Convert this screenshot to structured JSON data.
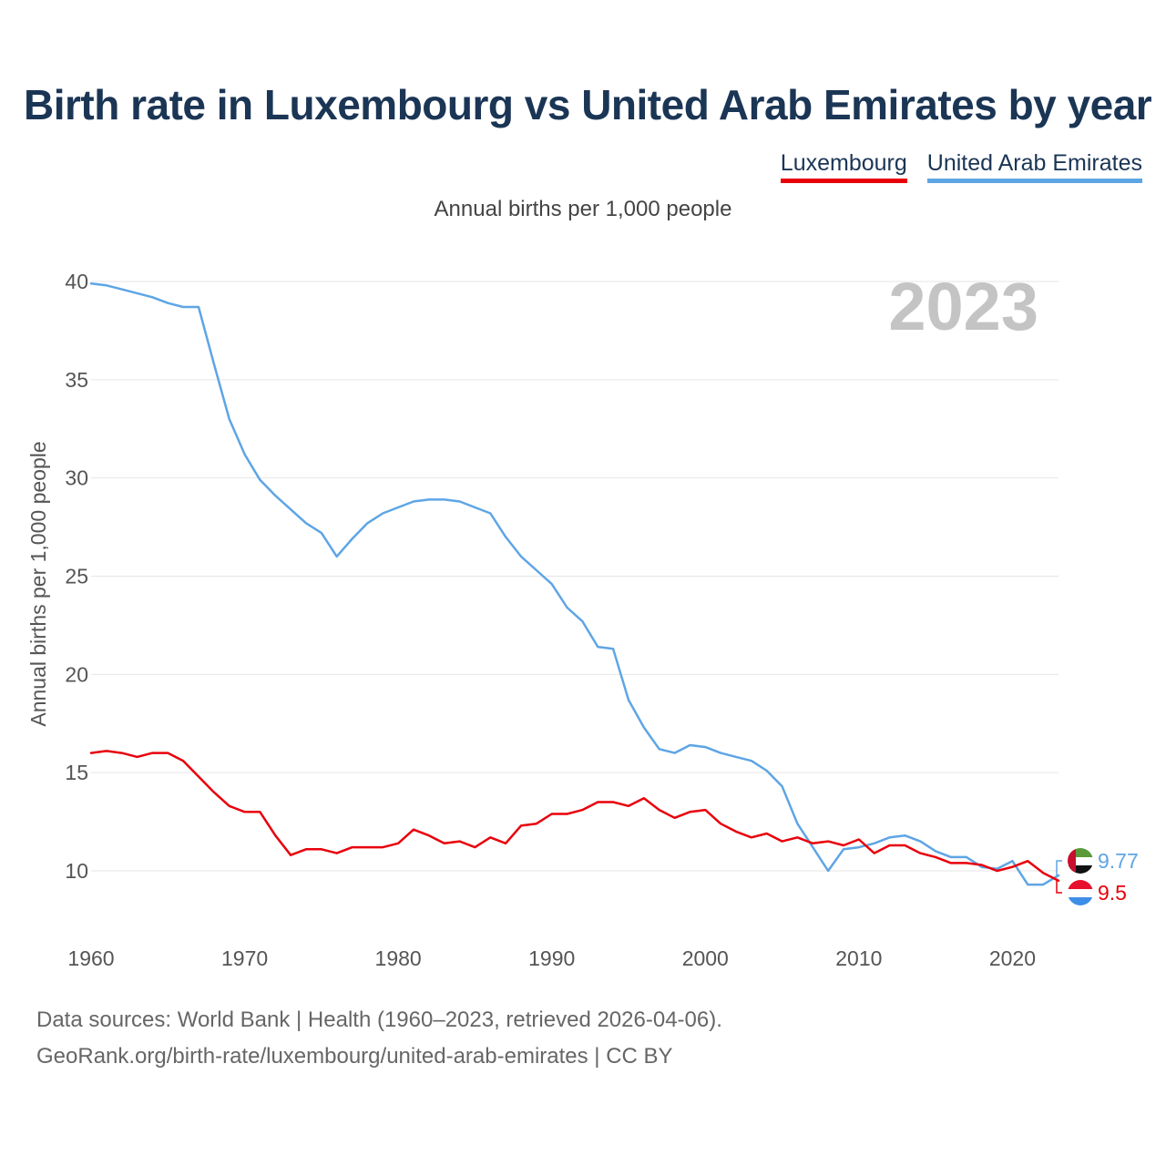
{
  "header": {
    "title": "Birth rate in Luxembourg vs United Arab Emirates by year",
    "subtitle": "Annual births per 1,000 people"
  },
  "legend": {
    "items": [
      "Luxembourg",
      "United Arab Emirates"
    ]
  },
  "footer": {
    "line1": "Data sources: World Bank | Health (1960–2023, retrieved 2026-04-06).",
    "line2": "GeoRank.org/birth-rate/luxembourg/united-arab-emirates | CC BY"
  },
  "colors": {
    "luxembourg": "#e8000b",
    "uae": "#5ea5e5",
    "title": "#1b3555",
    "year_watermark": "#c4c4c4",
    "grid": "#e6e6e6"
  },
  "chart_data": {
    "type": "line",
    "title": "Birth rate in Luxembourg vs United Arab Emirates by year",
    "ylabel": "Annual births per 1,000 people",
    "xlabel": "",
    "year_label": "2023",
    "xlim": [
      1960,
      2023
    ],
    "ylim": [
      8,
      40
    ],
    "yticks": [
      10,
      15,
      20,
      25,
      30,
      35,
      40
    ],
    "xticks": [
      1960,
      1970,
      1980,
      1990,
      2000,
      2010,
      2020
    ],
    "grid": true,
    "legend_position": "top-right",
    "series": [
      {
        "name": "Luxembourg",
        "color": "#e8000b",
        "end_label": "9.5",
        "x": [
          1960,
          1961,
          1962,
          1963,
          1964,
          1965,
          1966,
          1967,
          1968,
          1969,
          1970,
          1971,
          1972,
          1973,
          1974,
          1975,
          1976,
          1977,
          1978,
          1979,
          1980,
          1981,
          1982,
          1983,
          1984,
          1985,
          1986,
          1987,
          1988,
          1989,
          1990,
          1991,
          1992,
          1993,
          1994,
          1995,
          1996,
          1997,
          1998,
          1999,
          2000,
          2001,
          2002,
          2003,
          2004,
          2005,
          2006,
          2007,
          2008,
          2009,
          2010,
          2011,
          2012,
          2013,
          2014,
          2015,
          2016,
          2017,
          2018,
          2019,
          2020,
          2021,
          2022,
          2023
        ],
        "values": [
          16.0,
          16.1,
          16.0,
          15.8,
          16.0,
          16.0,
          15.6,
          14.8,
          14.0,
          13.3,
          13.0,
          13.0,
          11.8,
          10.8,
          11.1,
          11.1,
          10.9,
          11.2,
          11.2,
          11.2,
          11.4,
          12.1,
          11.8,
          11.4,
          11.5,
          11.2,
          11.7,
          11.4,
          12.3,
          12.4,
          12.9,
          12.9,
          13.1,
          13.5,
          13.5,
          13.3,
          13.7,
          13.1,
          12.7,
          13.0,
          13.1,
          12.4,
          12.0,
          11.7,
          11.9,
          11.5,
          11.7,
          11.4,
          11.5,
          11.3,
          11.6,
          10.9,
          11.3,
          11.3,
          10.9,
          10.7,
          10.4,
          10.4,
          10.3,
          10.0,
          10.2,
          10.5,
          9.9,
          9.5
        ]
      },
      {
        "name": "United Arab Emirates",
        "color": "#5ea5e5",
        "end_label": "9.77",
        "x": [
          1960,
          1961,
          1962,
          1963,
          1964,
          1965,
          1966,
          1967,
          1968,
          1969,
          1970,
          1971,
          1972,
          1973,
          1974,
          1975,
          1976,
          1977,
          1978,
          1979,
          1980,
          1981,
          1982,
          1983,
          1984,
          1985,
          1986,
          1987,
          1988,
          1989,
          1990,
          1991,
          1992,
          1993,
          1994,
          1995,
          1996,
          1997,
          1998,
          1999,
          2000,
          2001,
          2002,
          2003,
          2004,
          2005,
          2006,
          2007,
          2008,
          2009,
          2010,
          2011,
          2012,
          2013,
          2014,
          2015,
          2016,
          2017,
          2018,
          2019,
          2020,
          2021,
          2022,
          2023
        ],
        "values": [
          39.9,
          39.8,
          39.6,
          39.4,
          39.2,
          38.9,
          38.7,
          38.7,
          35.8,
          33.0,
          31.2,
          29.9,
          29.1,
          28.4,
          27.7,
          27.2,
          26.0,
          26.9,
          27.7,
          28.2,
          28.5,
          28.8,
          28.9,
          28.9,
          28.8,
          28.5,
          28.2,
          27.0,
          26.0,
          25.3,
          24.6,
          23.4,
          22.7,
          21.4,
          21.3,
          18.7,
          17.3,
          16.2,
          16.0,
          16.4,
          16.3,
          16.0,
          15.8,
          15.6,
          15.1,
          14.3,
          12.4,
          11.2,
          10.0,
          11.1,
          11.2,
          11.4,
          11.7,
          11.8,
          11.5,
          11.0,
          10.7,
          10.7,
          10.2,
          10.1,
          10.5,
          9.3,
          9.3,
          9.77
        ]
      }
    ]
  }
}
